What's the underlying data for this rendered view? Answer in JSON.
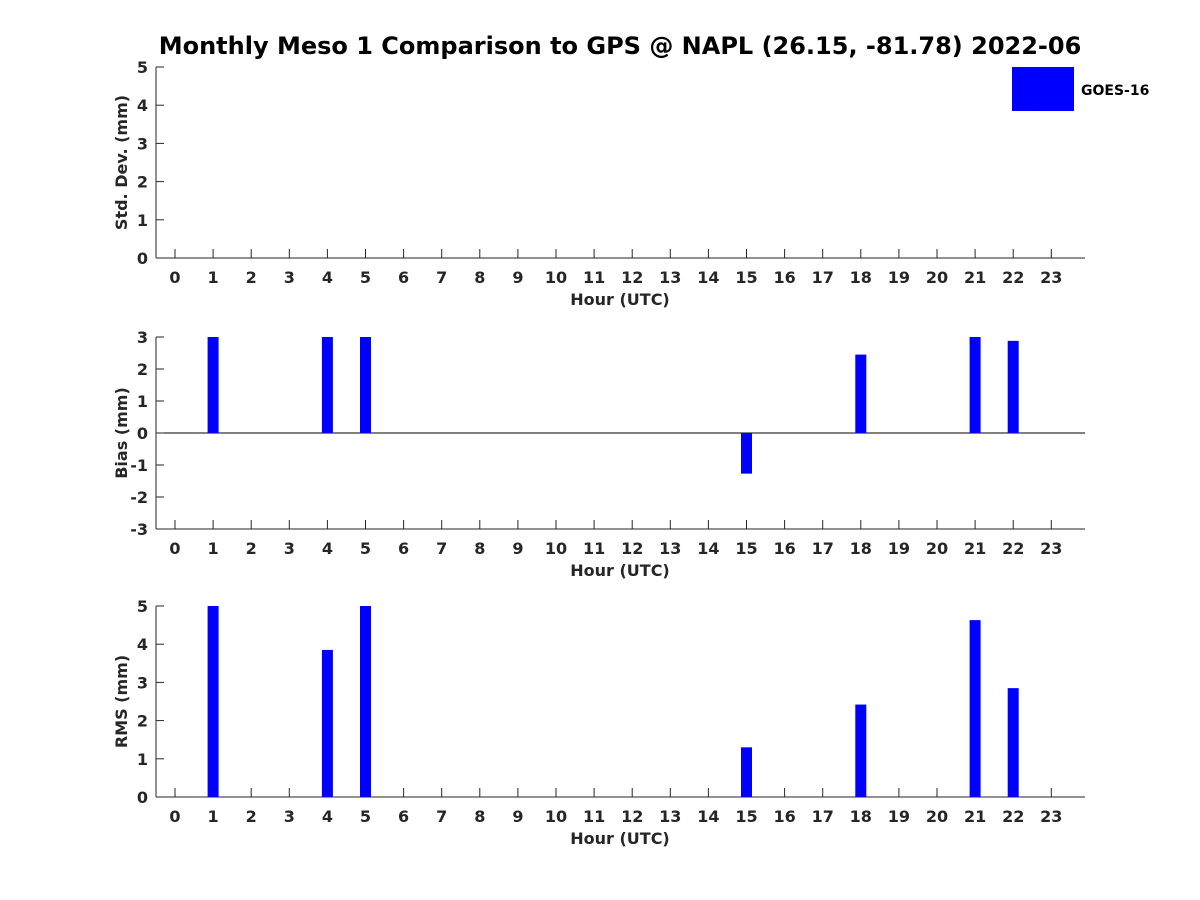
{
  "chart_data": {
    "title": "Monthly Meso 1 Comparison to GPS @ NAPL (26.15, -81.78) 2022-06",
    "legend": {
      "entries": [
        {
          "name": "GOES-16",
          "color": "#0000ff"
        }
      ],
      "placement": "top-right"
    },
    "bar_color": "#0000ff",
    "panels": [
      {
        "id": "std",
        "type": "bar",
        "ylabel": "Std. Dev. (mm)",
        "xlabel": "Hour (UTC)",
        "ylim": [
          0,
          5
        ],
        "yticks": [
          0,
          1,
          2,
          3,
          4,
          5
        ],
        "x": [
          0,
          1,
          2,
          3,
          4,
          5,
          6,
          7,
          8,
          9,
          10,
          11,
          12,
          13,
          14,
          15,
          16,
          17,
          18,
          19,
          20,
          21,
          22,
          23
        ],
        "values": []
      },
      {
        "id": "bias",
        "type": "bar",
        "ylabel": "Bias (mm)",
        "xlabel": "Hour (UTC)",
        "ylim": [
          -3,
          3
        ],
        "yticks": [
          -3,
          -2,
          -1,
          0,
          1,
          2,
          3
        ],
        "zero_line": true,
        "x": [
          0,
          1,
          2,
          3,
          4,
          5,
          6,
          7,
          8,
          9,
          10,
          11,
          12,
          13,
          14,
          15,
          16,
          17,
          18,
          19,
          20,
          21,
          22,
          23
        ],
        "values": [
          {
            "x": 1,
            "y": 3.0
          },
          {
            "x": 4,
            "y": 3.0
          },
          {
            "x": 5,
            "y": 3.0
          },
          {
            "x": 15,
            "y": -1.27
          },
          {
            "x": 18,
            "y": 2.45
          },
          {
            "x": 21,
            "y": 3.0
          },
          {
            "x": 22,
            "y": 2.88
          }
        ]
      },
      {
        "id": "rms",
        "type": "bar",
        "ylabel": "RMS (mm)",
        "xlabel": "Hour (UTC)",
        "ylim": [
          0,
          5
        ],
        "yticks": [
          0,
          1,
          2,
          3,
          4,
          5
        ],
        "x": [
          0,
          1,
          2,
          3,
          4,
          5,
          6,
          7,
          8,
          9,
          10,
          11,
          12,
          13,
          14,
          15,
          16,
          17,
          18,
          19,
          20,
          21,
          22,
          23
        ],
        "values": [
          {
            "x": 1,
            "y": 5.0
          },
          {
            "x": 4,
            "y": 3.85
          },
          {
            "x": 5,
            "y": 5.0
          },
          {
            "x": 15,
            "y": 1.3
          },
          {
            "x": 18,
            "y": 2.42
          },
          {
            "x": 21,
            "y": 4.63
          },
          {
            "x": 22,
            "y": 2.85
          }
        ]
      }
    ]
  }
}
